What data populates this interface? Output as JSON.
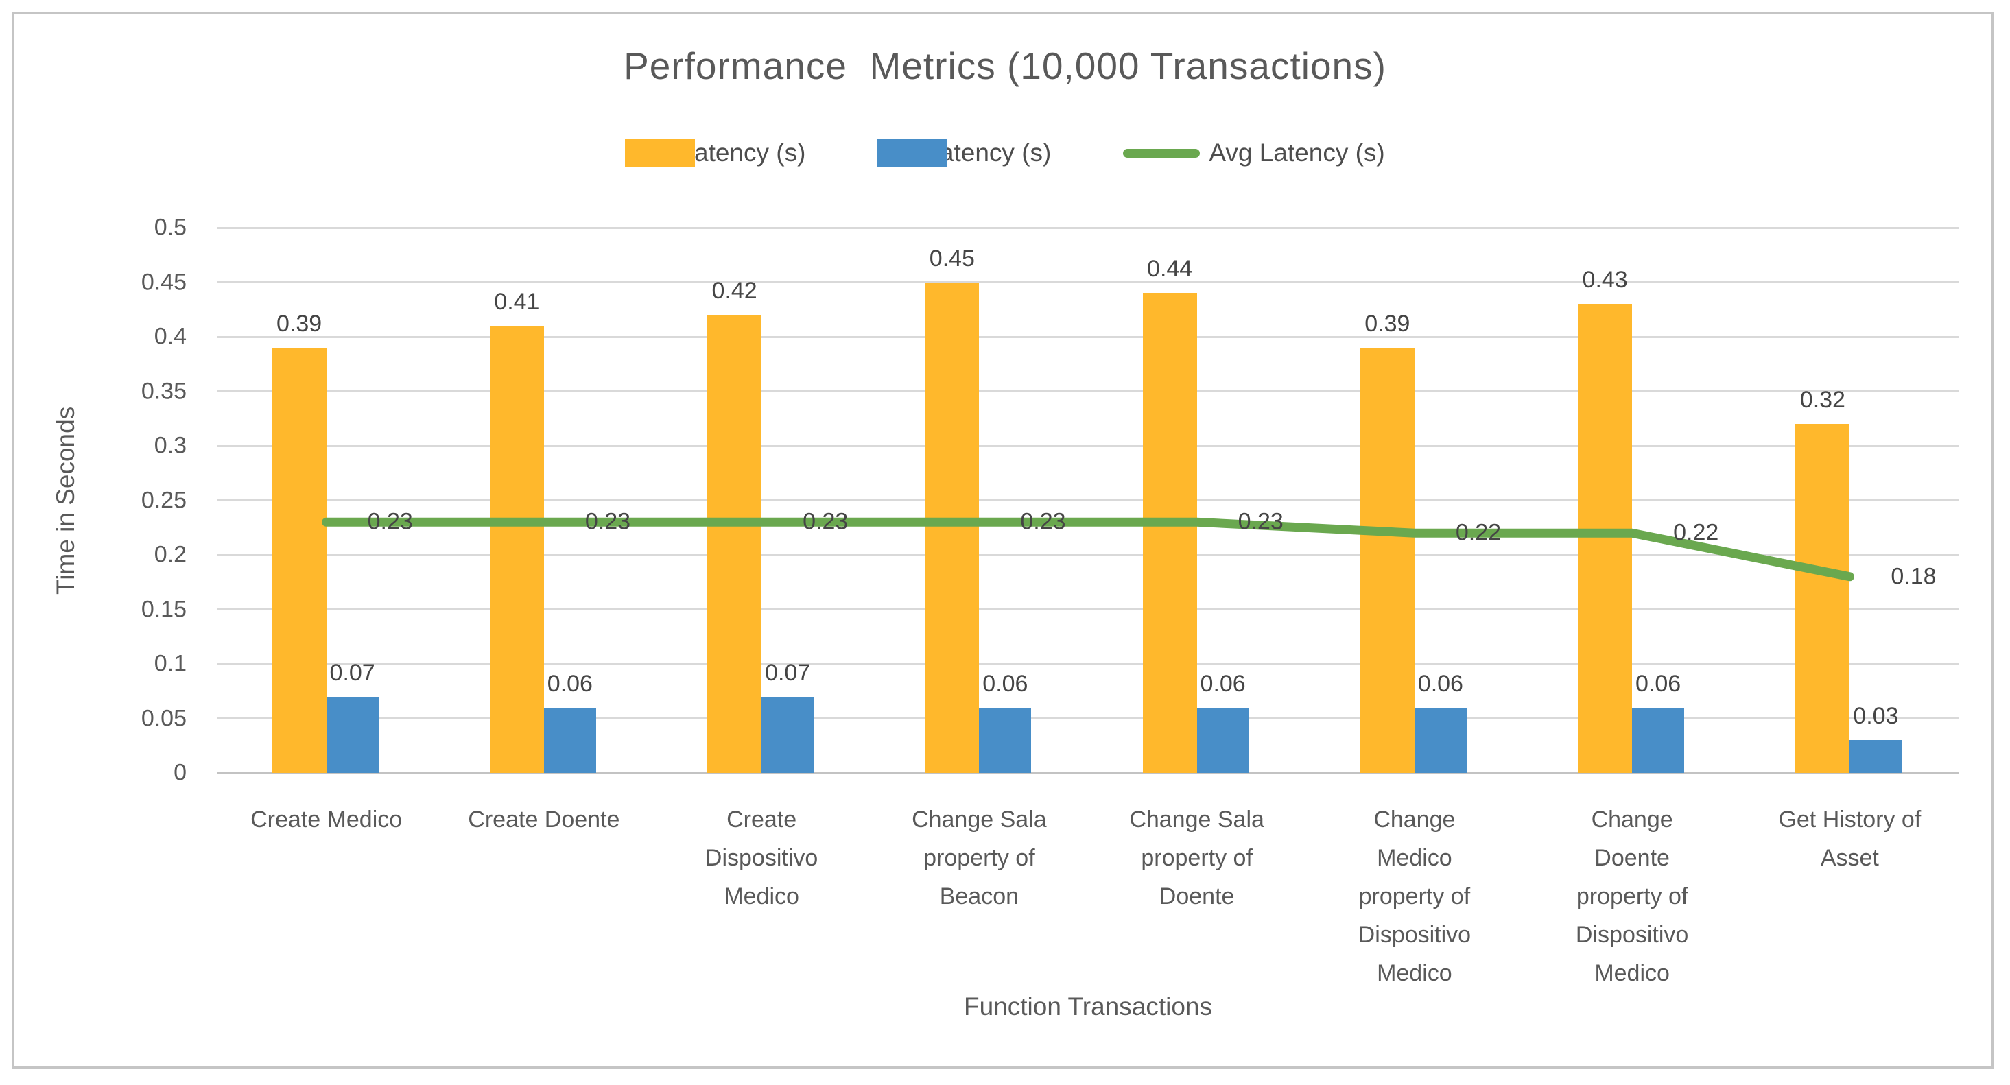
{
  "chart_data": {
    "type": "bar+line",
    "title": "Performance  Metrics (10,000 Transactions)",
    "xlabel": "Function Transactions",
    "ylabel": "Time in Seconds",
    "ylim": [
      0,
      0.5
    ],
    "ytick_labels": [
      "0.5",
      "0.45",
      "0.4",
      "0.35",
      "0.3",
      "0.25",
      "0.2",
      "0.15",
      "0.1",
      "0.05",
      "0"
    ],
    "grid": true,
    "legend_position": "top-center",
    "categories": [
      "Create Medico",
      "Create Doente",
      "Create Dispositivo Medico",
      "Change Sala property of Beacon",
      "Change Sala property of Doente",
      "Change Medico property of Dispositivo Medico",
      "Change Doente property of Dispositivo Medico",
      "Get History of Asset"
    ],
    "category_label_lines": [
      [
        "Create Medico"
      ],
      [
        "Create Doente"
      ],
      [
        "Create",
        "Dispositivo",
        "Medico"
      ],
      [
        "Change Sala",
        "property of",
        "Beacon"
      ],
      [
        "Change Sala",
        "property of",
        "Doente"
      ],
      [
        "Change",
        "Medico",
        "property of",
        "Dispositivo",
        "Medico"
      ],
      [
        "Change",
        "Doente",
        "property of",
        "Dispositivo",
        "Medico"
      ],
      [
        "Get History of",
        "Asset"
      ]
    ],
    "series": [
      {
        "name": "Max Latency (s)",
        "type": "bar",
        "color": "#FFB82C",
        "values": [
          0.39,
          0.41,
          0.42,
          0.45,
          0.44,
          0.39,
          0.43,
          0.32
        ],
        "data_labels": [
          "0.39",
          "0.41",
          "0.42",
          "0.45",
          "0.44",
          "0.39",
          "0.43",
          "0.32"
        ]
      },
      {
        "name": "Min Latency (s)",
        "type": "bar",
        "color": "#488EC8",
        "values": [
          0.07,
          0.06,
          0.07,
          0.06,
          0.06,
          0.06,
          0.06,
          0.03
        ],
        "data_labels": [
          "0.07",
          "0.06",
          "0.07",
          "0.06",
          "0.06",
          "0.06",
          "0.06",
          "0.03"
        ]
      },
      {
        "name": "Avg Latency (s)",
        "type": "line",
        "color": "#6AA84F",
        "values": [
          0.23,
          0.23,
          0.23,
          0.23,
          0.23,
          0.22,
          0.22,
          0.18
        ],
        "data_labels": [
          "0.23",
          "0.23",
          "0.23",
          "0.23",
          "0.23",
          "0.22",
          "0.22",
          "0.18"
        ]
      }
    ]
  },
  "styles": {
    "grid_color": "#D9D9D9",
    "zero_line_color": "#C3C3C3",
    "text_color": "#595959",
    "data_label_color": "#454545",
    "border_color": "#C5C5C5",
    "background": "#FFFFFF"
  }
}
